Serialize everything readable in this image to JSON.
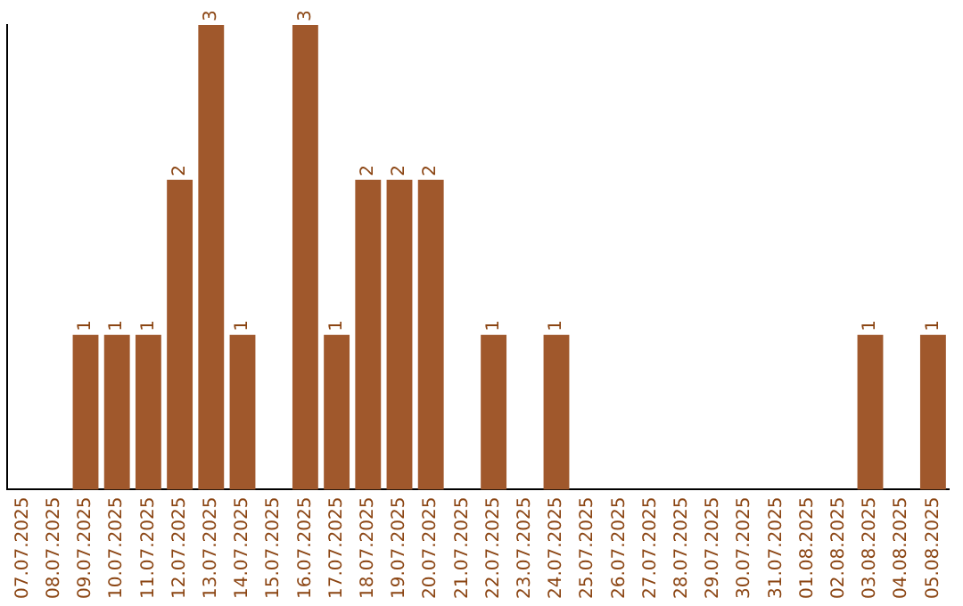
{
  "chart_data": {
    "type": "bar",
    "categories": [
      "07.07.2025",
      "08.07.2025",
      "09.07.2025",
      "10.07.2025",
      "11.07.2025",
      "12.07.2025",
      "13.07.2025",
      "14.07.2025",
      "15.07.2025",
      "16.07.2025",
      "17.07.2025",
      "18.07.2025",
      "19.07.2025",
      "20.07.2025",
      "21.07.2025",
      "22.07.2025",
      "23.07.2025",
      "24.07.2025",
      "25.07.2025",
      "26.07.2025",
      "27.07.2025",
      "28.07.2025",
      "29.07.2025",
      "30.07.2025",
      "31.07.2025",
      "01.08.2025",
      "02.08.2025",
      "03.08.2025",
      "04.08.2025",
      "05.08.2025"
    ],
    "values": [
      0,
      0,
      1,
      1,
      1,
      2,
      3,
      1,
      0,
      3,
      1,
      2,
      2,
      2,
      0,
      1,
      0,
      1,
      0,
      0,
      0,
      0,
      0,
      0,
      0,
      0,
      0,
      1,
      0,
      1
    ],
    "value_labels": [
      null,
      null,
      "1",
      "1",
      "1",
      "2",
      "3",
      "1",
      null,
      "3",
      "1",
      "2",
      "2",
      "2",
      null,
      "1",
      null,
      "1",
      null,
      null,
      null,
      null,
      null,
      null,
      null,
      null,
      null,
      "1",
      null,
      "1"
    ],
    "color": "#a0582c",
    "grid": false,
    "legend": false,
    "tick_labels": "x"
  }
}
